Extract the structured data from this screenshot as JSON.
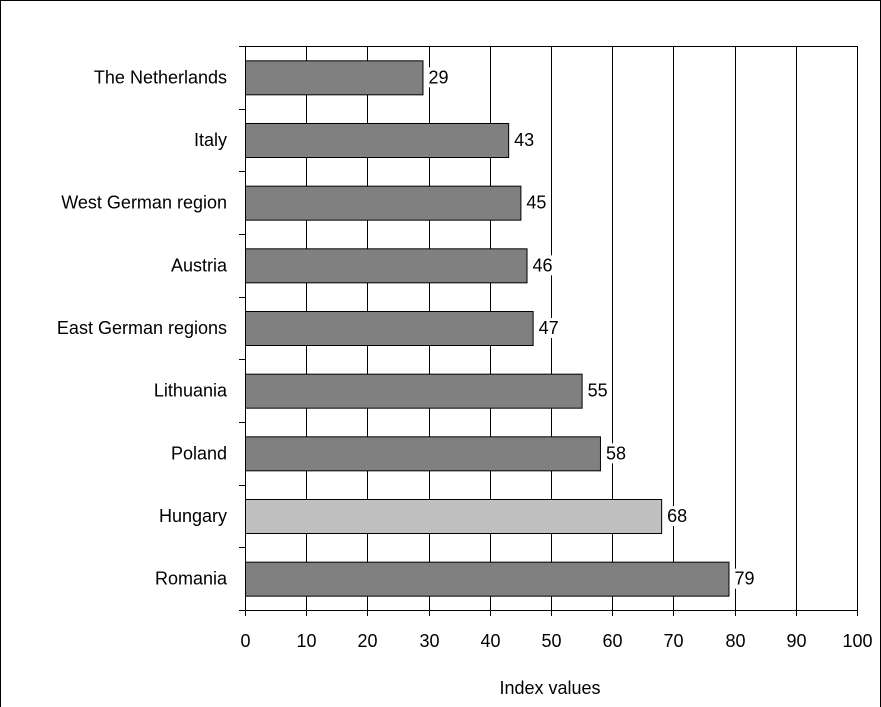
{
  "chart_data": {
    "type": "bar",
    "orientation": "horizontal",
    "categories": [
      "The Netherlands",
      "Italy",
      "West German region",
      "Austria",
      "East German regions",
      "Lithuania",
      "Poland",
      "Hungary",
      "Romania"
    ],
    "values": [
      29,
      43,
      45,
      46,
      47,
      55,
      58,
      68,
      79
    ],
    "highlight": [
      "Hungary"
    ],
    "xlabel": "Index values",
    "ylabel": "",
    "xlim": [
      0,
      100
    ],
    "xticks": [
      0,
      10,
      20,
      30,
      40,
      50,
      60,
      70,
      80,
      90,
      100
    ],
    "grid": true,
    "data_labels": true,
    "colors": {
      "bar": "#808080",
      "highlight_bar": "#c0c0c0",
      "bar_stroke": "#000000",
      "grid": "#000000",
      "frame": "#000000"
    }
  }
}
